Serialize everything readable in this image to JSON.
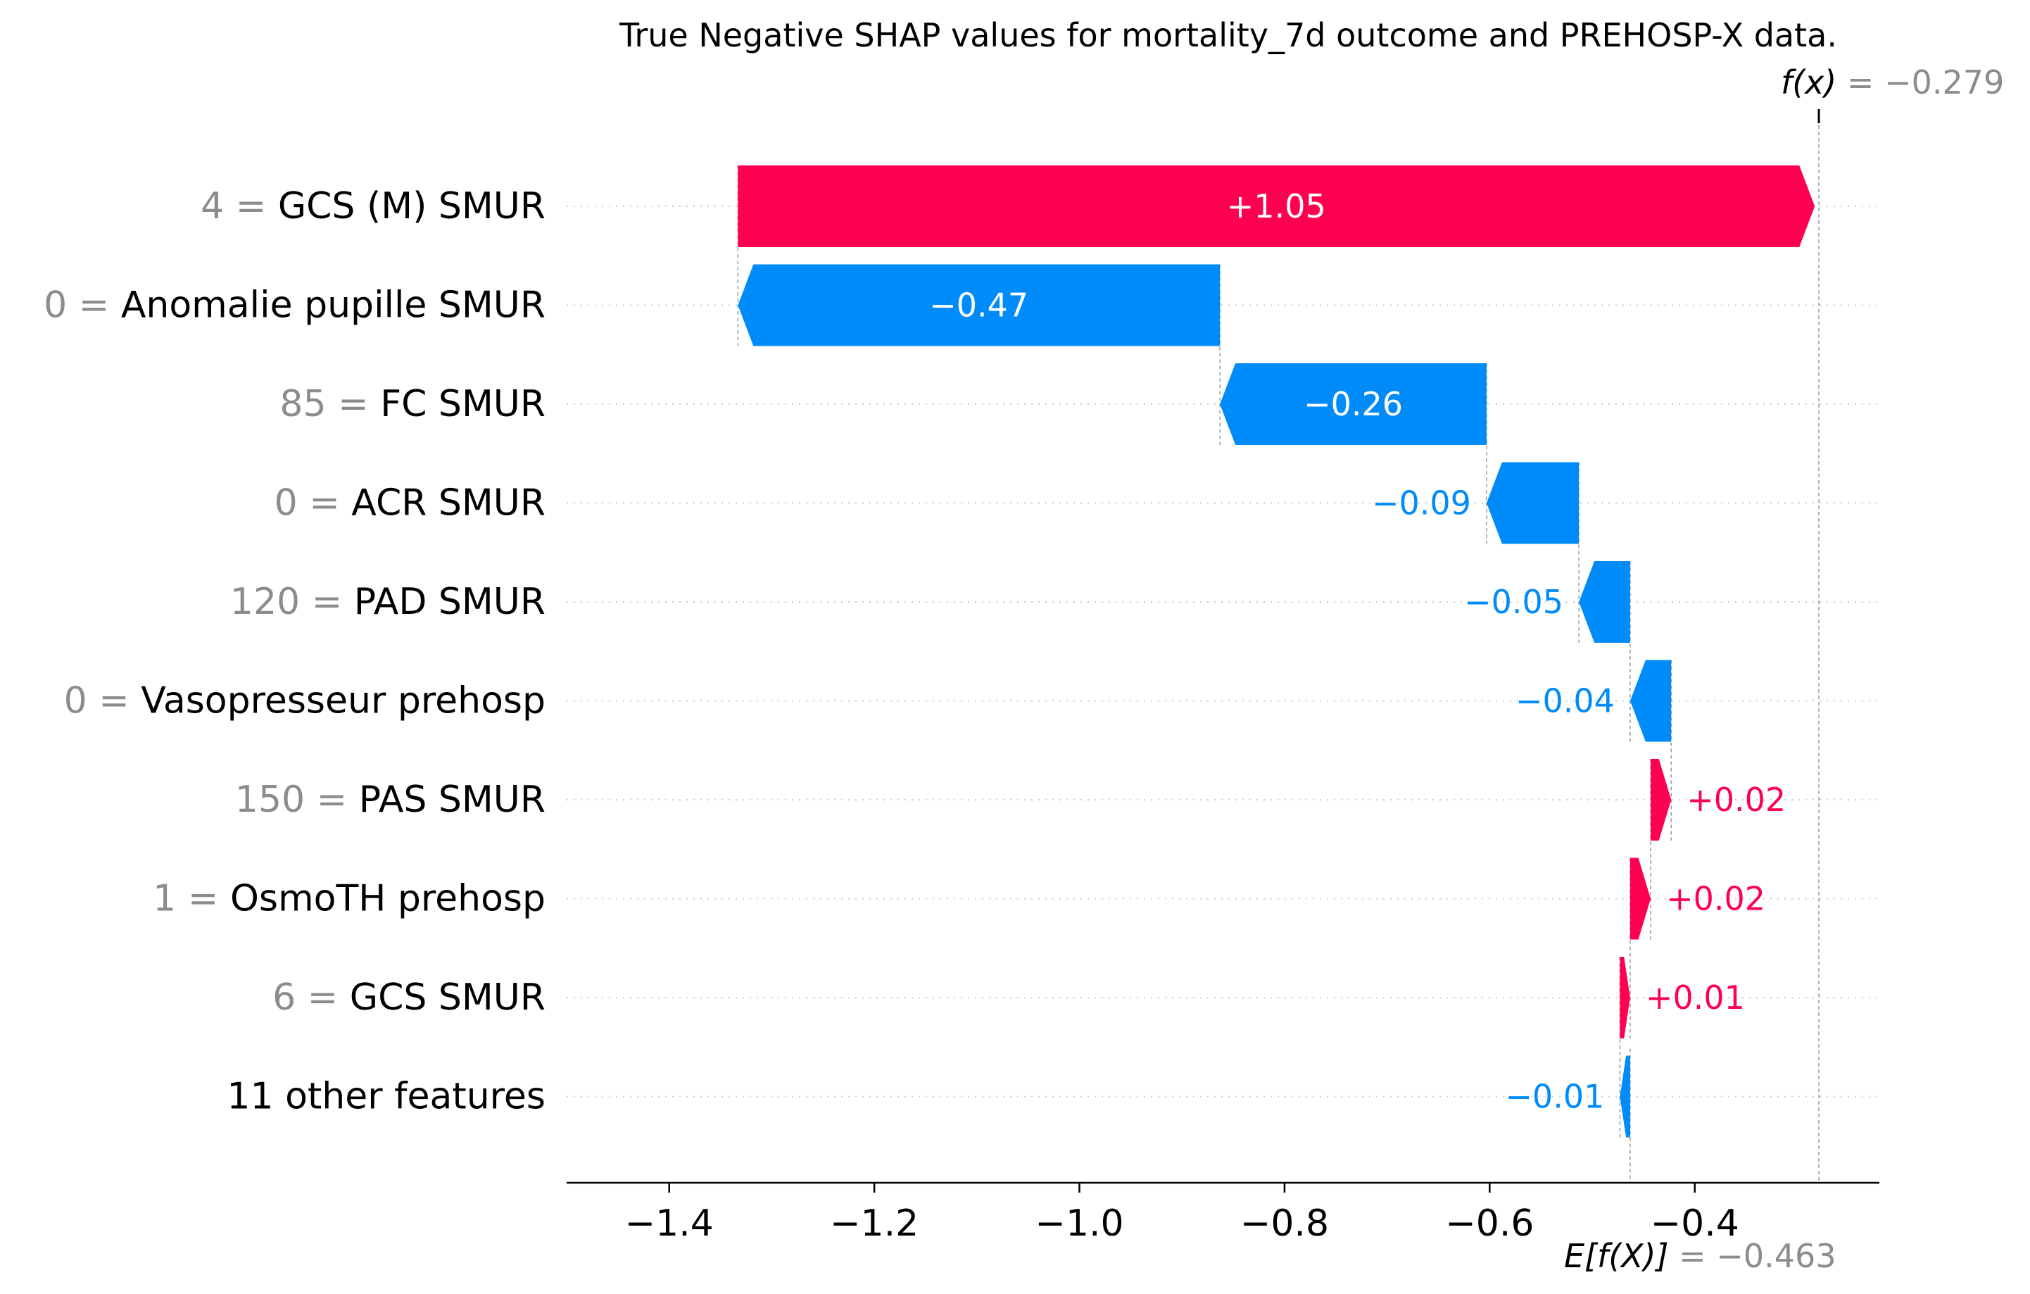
{
  "chart_data": {
    "type": "waterfall",
    "title": "True Negative SHAP values for mortality_7d outcome and PREHOSP-X data.",
    "base_value": -0.463,
    "output_value": -0.279,
    "base_label": {
      "expr": "E[f(X)]",
      "eq": " = −0.463"
    },
    "output_label": {
      "expr": "f(x)",
      "eq": " = −0.279"
    },
    "xlim": [
      -1.5,
      -0.22
    ],
    "xticks": [
      -1.4,
      -1.2,
      -1.0,
      -0.8,
      -0.6,
      -0.4
    ],
    "xtick_labels": [
      "−1.4",
      "−1.2",
      "−1.0",
      "−0.8",
      "−0.6",
      "−0.4"
    ],
    "features": [
      {
        "value": "4",
        "name": "GCS (M) SMUR",
        "shap": 1.05,
        "label": "+1.05"
      },
      {
        "value": "0",
        "name": "Anomalie pupille SMUR",
        "shap": -0.47,
        "label": "−0.47"
      },
      {
        "value": "85",
        "name": "FC SMUR",
        "shap": -0.26,
        "label": "−0.26"
      },
      {
        "value": "0",
        "name": "ACR SMUR",
        "shap": -0.09,
        "label": "−0.09"
      },
      {
        "value": "120",
        "name": "PAD  SMUR",
        "shap": -0.05,
        "label": "−0.05"
      },
      {
        "value": "0",
        "name": "Vasopresseur prehosp",
        "shap": -0.04,
        "label": "−0.04"
      },
      {
        "value": "150",
        "name": "PAS  SMUR",
        "shap": 0.02,
        "label": "+0.02"
      },
      {
        "value": "1",
        "name": "OsmoTH prehosp",
        "shap": 0.02,
        "label": "+0.02"
      },
      {
        "value": "6",
        "name": "GCS SMUR",
        "shap": 0.01,
        "label": "+0.01"
      },
      {
        "value": "",
        "name": "11 other features",
        "shap": -0.01,
        "label": "−0.01"
      }
    ],
    "colors": {
      "positive": "#ff0051",
      "negative": "#008bfb",
      "inside_label": "#ffffff",
      "axis": "#000000",
      "grid": "#cccccc",
      "ref_line": "#999999",
      "value_text": "#8c8c8c"
    }
  }
}
